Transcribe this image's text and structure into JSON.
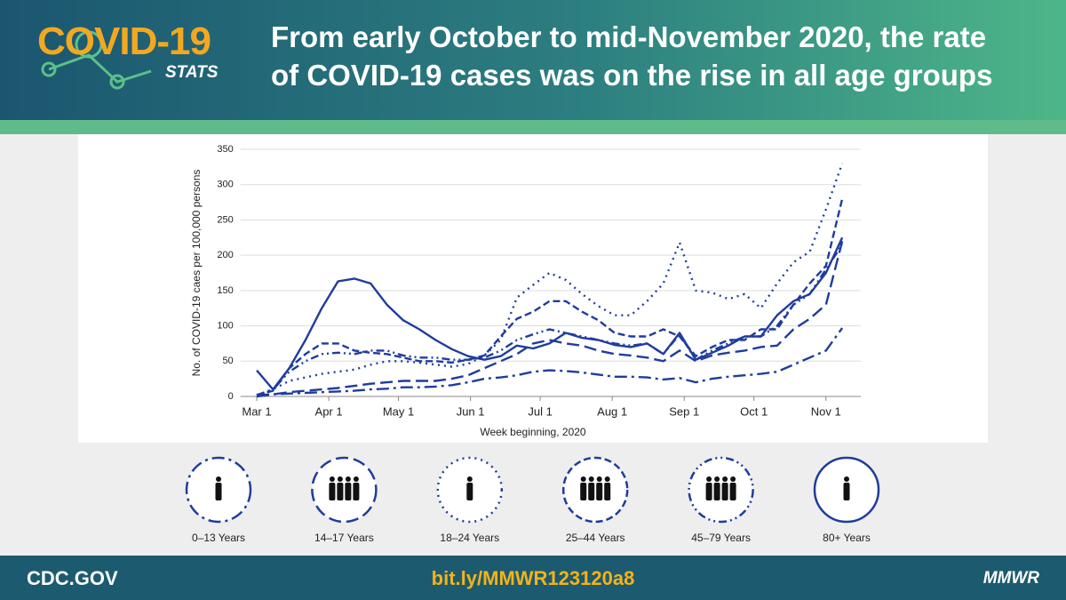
{
  "header": {
    "logo": "COVID-19",
    "logo_sub": "STATS",
    "title_lines": [
      "From early October to mid-November 2020, the rate",
      "of COVID-19 cases was on the rise in all age groups"
    ]
  },
  "chart_data": {
    "type": "line",
    "y_label": "No. of COVID-19 caes per 100,000 persons",
    "x_label": "Week beginning, 2020",
    "x": [
      0,
      7,
      14,
      21,
      28,
      35,
      42,
      49,
      56,
      63,
      70,
      77,
      84,
      91,
      98,
      105,
      112,
      119,
      126,
      133,
      140,
      147,
      154,
      161,
      168,
      175,
      182,
      189,
      196,
      203,
      210,
      217,
      224,
      231,
      238,
      245,
      252
    ],
    "xlim": [
      -7,
      260
    ],
    "xticks": [
      {
        "value": 0,
        "label": "Mar 1"
      },
      {
        "value": 31,
        "label": "Apr 1"
      },
      {
        "value": 61,
        "label": "May 1"
      },
      {
        "value": 92,
        "label": "Jun 1"
      },
      {
        "value": 122,
        "label": "Jul 1"
      },
      {
        "value": 153,
        "label": "Aug 1"
      },
      {
        "value": 184,
        "label": "Sep 1"
      },
      {
        "value": 214,
        "label": "Oct 1"
      },
      {
        "value": 245,
        "label": "Nov 1"
      }
    ],
    "ylim": [
      0,
      350
    ],
    "yticks": [
      0,
      50,
      100,
      150,
      200,
      250,
      300,
      350
    ],
    "grid": true,
    "series": [
      {
        "name": "0–13 Years",
        "color": "#1f3c9e",
        "dash": "14 5 3 5",
        "values": [
          2,
          3,
          4,
          5,
          6,
          7,
          8,
          10,
          11,
          13,
          13,
          14,
          16,
          20,
          25,
          27,
          30,
          35,
          37,
          36,
          34,
          31,
          28,
          28,
          27,
          24,
          26,
          20,
          25,
          28,
          30,
          32,
          35,
          45,
          55,
          65,
          97
        ]
      },
      {
        "name": "14–17 Years",
        "color": "#1f3c9e",
        "dash": "14 6",
        "values": [
          0,
          3,
          6,
          8,
          10,
          12,
          15,
          18,
          20,
          22,
          22,
          22,
          25,
          30,
          40,
          50,
          60,
          75,
          80,
          75,
          72,
          65,
          60,
          58,
          55,
          50,
          65,
          50,
          58,
          62,
          65,
          70,
          72,
          95,
          110,
          130,
          220
        ]
      },
      {
        "name": "18–24 Years",
        "color": "#1f3c9e",
        "dash": "2 5",
        "values": [
          2,
          10,
          22,
          27,
          32,
          35,
          38,
          45,
          50,
          50,
          48,
          45,
          42,
          46,
          58,
          80,
          140,
          158,
          175,
          165,
          145,
          128,
          115,
          115,
          135,
          160,
          218,
          150,
          147,
          138,
          145,
          125,
          160,
          190,
          205,
          265,
          330
        ]
      },
      {
        "name": "25–44 Years",
        "color": "#1f3c9e",
        "dash": "8 4",
        "values": [
          2,
          8,
          40,
          60,
          75,
          75,
          65,
          62,
          60,
          55,
          50,
          50,
          48,
          52,
          58,
          85,
          110,
          120,
          135,
          135,
          120,
          108,
          90,
          85,
          85,
          95,
          85,
          57,
          70,
          80,
          80,
          95,
          95,
          130,
          160,
          185,
          280
        ]
      },
      {
        "name": "45–79 Years",
        "color": "#1f3c9e",
        "dash": "9 4 2 4 2 4",
        "values": [
          2,
          10,
          35,
          50,
          60,
          62,
          60,
          65,
          65,
          58,
          55,
          55,
          52,
          52,
          55,
          65,
          80,
          88,
          95,
          90,
          85,
          80,
          75,
          72,
          75,
          60,
          88,
          52,
          65,
          75,
          85,
          85,
          100,
          130,
          145,
          180,
          215
        ]
      },
      {
        "name": "80+ Years",
        "color": "#1f3c9e",
        "values": [
          37,
          10,
          40,
          80,
          125,
          163,
          167,
          160,
          130,
          108,
          95,
          80,
          67,
          57,
          52,
          57,
          72,
          68,
          75,
          90,
          83,
          80,
          73,
          70,
          75,
          60,
          90,
          52,
          62,
          72,
          85,
          85,
          115,
          135,
          145,
          175,
          225
        ]
      }
    ]
  },
  "footer": {
    "left": "CDC.GOV",
    "link": "bit.ly/MMWR123120a8",
    "right": "MMWR"
  }
}
